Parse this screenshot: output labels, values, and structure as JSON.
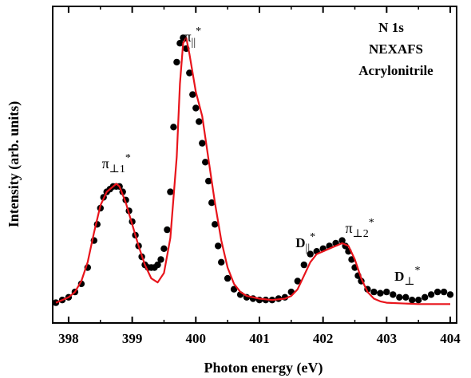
{
  "chart_data": {
    "type": "line",
    "xlabel": "Photon energy (eV)",
    "ylabel": "Intensity (arb. units)",
    "xlim": [
      397.75,
      404.1
    ],
    "ylim": [
      0,
      1.0
    ],
    "x_ticks": [
      398,
      399,
      400,
      401,
      402,
      403,
      404
    ],
    "x_tick_labels": [
      "398",
      "399",
      "400",
      "401",
      "402",
      "403",
      "404"
    ],
    "y_ticks_labeled": false,
    "grid": false,
    "colors": {
      "measured": "#000000",
      "fit": "#e8141b"
    },
    "annotation_box": {
      "lines": [
        "N 1s",
        "NEXAFS",
        "Acrylonitrile"
      ],
      "position": "top-right"
    },
    "peak_labels": [
      {
        "base": "π",
        "sub": "⊥1",
        "sup": "*",
        "x": 398.75
      },
      {
        "base": "π",
        "sub": "||",
        "sup": "*",
        "x": 399.85
      },
      {
        "base": "D",
        "sub": "||",
        "sup": "*",
        "x": 401.9
      },
      {
        "base": "π",
        "sub": "⊥2",
        "sup": "*",
        "x": 402.3
      },
      {
        "base": "D",
        "sub": "⊥",
        "sup": "*",
        "x": 403.2
      }
    ],
    "series": [
      {
        "style": "markers",
        "x": [
          397.8,
          397.9,
          398.0,
          398.1,
          398.2,
          398.3,
          398.4,
          398.45,
          398.5,
          398.55,
          398.6,
          398.65,
          398.7,
          398.75,
          398.8,
          398.85,
          398.9,
          398.95,
          399.0,
          399.05,
          399.1,
          399.15,
          399.2,
          399.25,
          399.3,
          399.35,
          399.4,
          399.45,
          399.5,
          399.55,
          399.6,
          399.65,
          399.7,
          399.75,
          399.8,
          399.85,
          399.9,
          399.95,
          400.0,
          400.05,
          400.1,
          400.15,
          400.2,
          400.25,
          400.3,
          400.35,
          400.4,
          400.5,
          400.6,
          400.7,
          400.8,
          400.9,
          401.0,
          401.1,
          401.2,
          401.3,
          401.4,
          401.5,
          401.6,
          401.7,
          401.8,
          401.9,
          402.0,
          402.1,
          402.2,
          402.3,
          402.35,
          402.4,
          402.45,
          402.5,
          402.55,
          402.6,
          402.7,
          402.8,
          402.9,
          403.0,
          403.1,
          403.2,
          403.3,
          403.4,
          403.5,
          403.6,
          403.7,
          403.8,
          403.9,
          404.0
        ],
        "y": [
          0.01,
          0.02,
          0.03,
          0.05,
          0.08,
          0.14,
          0.24,
          0.3,
          0.36,
          0.4,
          0.42,
          0.43,
          0.44,
          0.44,
          0.44,
          0.42,
          0.39,
          0.35,
          0.31,
          0.26,
          0.22,
          0.18,
          0.15,
          0.14,
          0.14,
          0.14,
          0.15,
          0.17,
          0.21,
          0.28,
          0.42,
          0.66,
          0.9,
          0.97,
          0.99,
          0.95,
          0.86,
          0.78,
          0.73,
          0.68,
          0.6,
          0.53,
          0.46,
          0.38,
          0.3,
          0.22,
          0.16,
          0.1,
          0.06,
          0.04,
          0.03,
          0.025,
          0.02,
          0.02,
          0.02,
          0.025,
          0.03,
          0.05,
          0.09,
          0.15,
          0.19,
          0.2,
          0.21,
          0.22,
          0.23,
          0.24,
          0.22,
          0.2,
          0.17,
          0.14,
          0.11,
          0.09,
          0.06,
          0.05,
          0.045,
          0.05,
          0.04,
          0.03,
          0.03,
          0.02,
          0.02,
          0.03,
          0.04,
          0.05,
          0.05,
          0.04
        ]
      },
      {
        "style": "line",
        "x": [
          397.8,
          397.9,
          398.0,
          398.1,
          398.2,
          398.3,
          398.4,
          398.5,
          398.6,
          398.7,
          398.75,
          398.8,
          398.9,
          399.0,
          399.1,
          399.2,
          399.3,
          399.4,
          399.5,
          399.6,
          399.7,
          399.75,
          399.8,
          399.85,
          399.9,
          400.0,
          400.1,
          400.2,
          400.3,
          400.4,
          400.5,
          400.6,
          400.7,
          400.8,
          400.9,
          401.0,
          401.2,
          401.4,
          401.5,
          401.6,
          401.7,
          401.8,
          401.9,
          402.0,
          402.1,
          402.2,
          402.3,
          402.4,
          402.5,
          402.6,
          402.7,
          402.8,
          402.9,
          403.0,
          403.2,
          403.5,
          403.8,
          404.0
        ],
        "y": [
          0.01,
          0.02,
          0.03,
          0.05,
          0.09,
          0.16,
          0.27,
          0.37,
          0.42,
          0.44,
          0.45,
          0.44,
          0.38,
          0.3,
          0.22,
          0.15,
          0.1,
          0.085,
          0.12,
          0.25,
          0.55,
          0.82,
          0.97,
          0.99,
          0.93,
          0.79,
          0.7,
          0.54,
          0.38,
          0.24,
          0.14,
          0.08,
          0.05,
          0.035,
          0.03,
          0.025,
          0.02,
          0.025,
          0.035,
          0.06,
          0.11,
          0.16,
          0.19,
          0.2,
          0.21,
          0.22,
          0.23,
          0.22,
          0.17,
          0.1,
          0.05,
          0.025,
          0.015,
          0.01,
          0.008,
          0.005,
          0.005,
          0.005
        ]
      }
    ]
  }
}
